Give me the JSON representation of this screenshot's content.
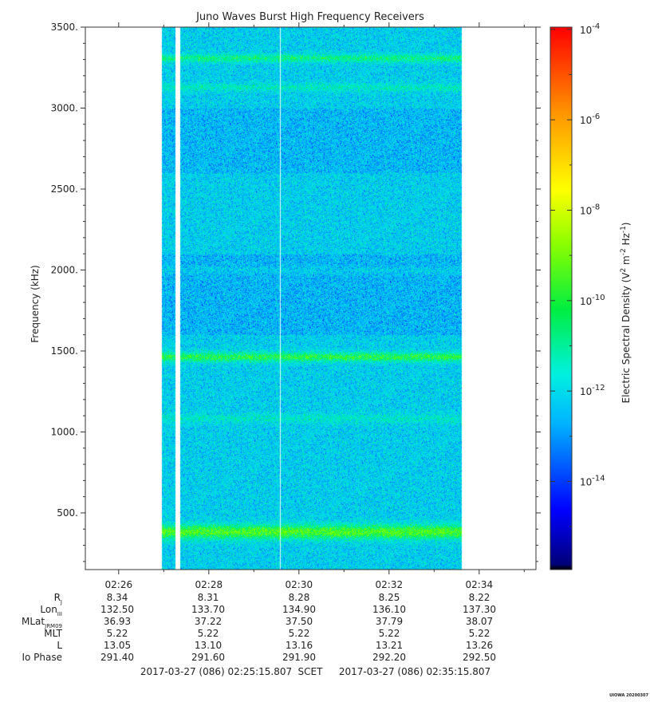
{
  "chart_data": {
    "type": "heatmap",
    "title": "Juno Waves Burst High Frequency Receivers",
    "ylabel": "Frequency (kHz)",
    "ylim": [
      150,
      3500
    ],
    "yticks": [
      {
        "value": 3500,
        "label": "3500."
      },
      {
        "value": 3000,
        "label": "3000."
      },
      {
        "value": 2500,
        "label": "2500."
      },
      {
        "value": 2000,
        "label": "2000."
      },
      {
        "value": 1500,
        "label": "1500."
      },
      {
        "value": 1000,
        "label": "1000."
      },
      {
        "value": 500,
        "label": "500."
      }
    ],
    "xlim_minutes": [
      145.26,
      155.26
    ],
    "xticks": [
      {
        "value": 146,
        "label": "02:26"
      },
      {
        "value": 148,
        "label": "02:28"
      },
      {
        "value": 150,
        "label": "02:30"
      },
      {
        "value": 152,
        "label": "02:32"
      },
      {
        "value": 154,
        "label": "02:34"
      }
    ],
    "data_span_minutes": [
      146.95,
      153.6
    ],
    "gaps_minutes": [
      [
        147.26,
        147.36
      ]
    ],
    "lines_minutes": [
      149.58
    ],
    "bands_khz": [
      {
        "center": 3310,
        "width": 25,
        "strength": 0.55
      },
      {
        "center": 3130,
        "width": 25,
        "strength": 0.3
      },
      {
        "center": 1465,
        "width": 30,
        "strength": 0.75
      },
      {
        "center": 1085,
        "width": 30,
        "strength": 0.25
      },
      {
        "center": 385,
        "width": 45,
        "strength": 0.95
      },
      {
        "center": 2000,
        "width": 25,
        "strength": 0.15
      }
    ],
    "colorbar": {
      "label": "Electric Spectral Density (V² m⁻² Hz⁻¹)",
      "label_parts": [
        "Electric Spectral Density (V",
        "2",
        " m",
        "-2",
        " Hz",
        "-1",
        ")"
      ],
      "log10_range": [
        -15.95,
        -3.95
      ],
      "ticks": [
        {
          "exp": -4,
          "label": "10",
          "sup": "-4"
        },
        {
          "exp": -6,
          "label": "10",
          "sup": "-6"
        },
        {
          "exp": -8,
          "label": "10",
          "sup": "-8"
        },
        {
          "exp": -10,
          "label": "10",
          "sup": "-10"
        },
        {
          "exp": -12,
          "label": "10",
          "sup": "-12"
        },
        {
          "exp": -14,
          "label": "10",
          "sup": "-14"
        }
      ]
    }
  },
  "ephemeris": {
    "rows": [
      {
        "label": "R",
        "sub": "J",
        "values": [
          "8.34",
          "8.31",
          "8.28",
          "8.25",
          "8.22"
        ]
      },
      {
        "label": "Lon",
        "sub": "III",
        "values": [
          "132.50",
          "133.70",
          "134.90",
          "136.10",
          "137.30"
        ]
      },
      {
        "label": "MLat",
        "sub": "JRM09",
        "values": [
          "36.93",
          "37.22",
          "37.50",
          "37.79",
          "38.07"
        ]
      },
      {
        "label": "MLT",
        "sub": "",
        "values": [
          "5.22",
          "5.22",
          "5.22",
          "5.22",
          "5.22"
        ]
      },
      {
        "label": "L",
        "sub": "",
        "values": [
          "13.05",
          "13.10",
          "13.16",
          "13.21",
          "13.26"
        ]
      },
      {
        "label": "Io Phase",
        "sub": "",
        "values": [
          "291.40",
          "291.60",
          "291.90",
          "292.20",
          "292.50"
        ]
      }
    ]
  },
  "time_range": {
    "start": "2017-03-27 (086) 02:25:15.807",
    "label": "SCET",
    "end": "2017-03-27 (086) 02:35:15.807"
  },
  "footer": {
    "stamp": "UIOWA 20200307"
  }
}
